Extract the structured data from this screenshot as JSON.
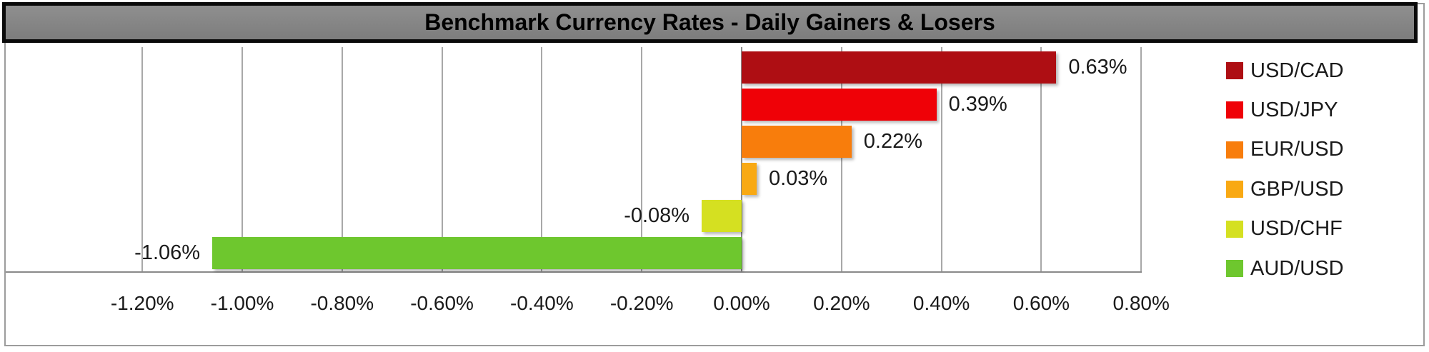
{
  "title": "Benchmark Currency Rates - Daily Gainers & Losers",
  "chart_data": {
    "type": "bar",
    "orientation": "horizontal",
    "title": "Benchmark Currency Rates - Daily Gainers & Losers",
    "categories": [
      "USD/CAD",
      "USD/JPY",
      "EUR/USD",
      "GBP/USD",
      "USD/CHF",
      "AUD/USD"
    ],
    "values": [
      0.63,
      0.39,
      0.22,
      0.03,
      -0.08,
      -1.06
    ],
    "value_labels": [
      "0.63%",
      "0.39%",
      "0.22%",
      "0.03%",
      "-0.08%",
      "-1.06%"
    ],
    "bar_colors": [
      "#AE0E13",
      "#EF0107",
      "#F87D0C",
      "#F9A913",
      "#D5E021",
      "#6EC72E"
    ],
    "xlabel": "",
    "ylabel": "",
    "x_axis": {
      "range": [
        -1.2,
        0.8
      ],
      "ticks": [
        -1.2,
        -1.0,
        -0.8,
        -0.6,
        -0.4,
        -0.2,
        0.0,
        0.2,
        0.4,
        0.6,
        0.8
      ],
      "tick_labels": [
        "-1.20%",
        "-1.00%",
        "-0.80%",
        "-0.60%",
        "-0.40%",
        "-0.20%",
        "0.00%",
        "0.20%",
        "0.40%",
        "0.60%",
        "0.80%"
      ]
    },
    "grid": true,
    "legend": {
      "position": "right",
      "entries": [
        {
          "label": "USD/CAD",
          "color": "#AE0E13"
        },
        {
          "label": "USD/JPY",
          "color": "#EF0107"
        },
        {
          "label": "EUR/USD",
          "color": "#F87D0C"
        },
        {
          "label": "GBP/USD",
          "color": "#F9A913"
        },
        {
          "label": "USD/CHF",
          "color": "#D5E021"
        },
        {
          "label": "AUD/USD",
          "color": "#6EC72E"
        }
      ]
    }
  },
  "colors": {
    "title_bar_bg": "#858585",
    "title_border": "#0A0A0A",
    "title_text": "#000000",
    "outer_border": "#9C9C9C",
    "gridline": "#A8A8A8",
    "axis_line": "#8A8A8A",
    "label_text": "#1A1A1A",
    "plot_bg": "#FFFFFF"
  }
}
